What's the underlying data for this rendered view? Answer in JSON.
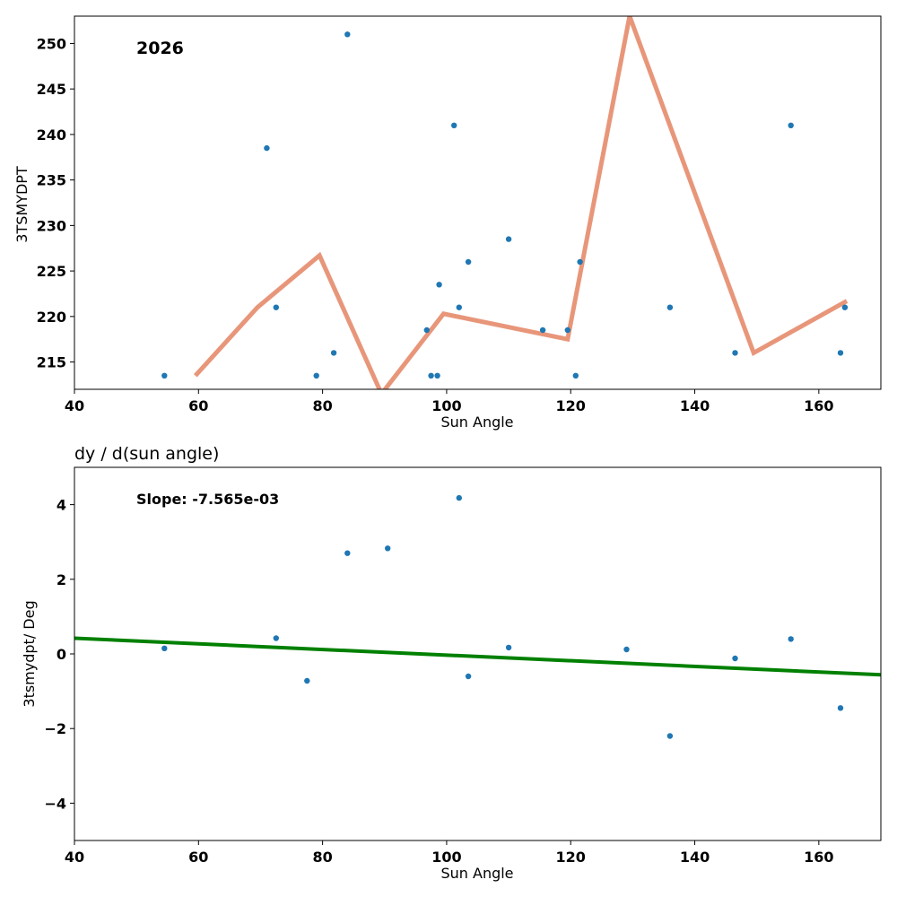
{
  "chart_data": [
    {
      "type": "scatter",
      "title": "",
      "annotation": "2026",
      "xlabel": "Sun Angle",
      "ylabel": "3TSMYDPT",
      "xlim": [
        40,
        170
      ],
      "ylim": [
        212,
        253
      ],
      "xticks": [
        "40",
        "60",
        "80",
        "100",
        "120",
        "140",
        "160"
      ],
      "yticks": [
        "215",
        "220",
        "225",
        "230",
        "235",
        "240",
        "245",
        "250"
      ],
      "colors": {
        "points": "#1f77b4",
        "line": "#e8967a"
      },
      "series": [
        {
          "name": "observations",
          "kind": "scatter",
          "x": [
            54.5,
            71.0,
            72.5,
            79.0,
            81.8,
            84.0,
            96.8,
            97.5,
            98.5,
            98.8,
            101.2,
            102.0,
            103.5,
            110.0,
            115.5,
            119.5,
            120.8,
            121.5,
            136.0,
            146.5,
            155.5,
            163.5,
            164.2
          ],
          "y": [
            213.5,
            238.5,
            221.0,
            213.5,
            216.0,
            251.0,
            218.5,
            213.5,
            213.5,
            223.5,
            241.0,
            221.0,
            226.0,
            228.5,
            218.5,
            218.5,
            213.5,
            226.0,
            221.0,
            216.0,
            241.0,
            216.0,
            221.0
          ]
        },
        {
          "name": "binned mean",
          "kind": "line",
          "x": [
            59.5,
            69.5,
            79.5,
            89.5,
            99.5,
            119.5,
            129.5,
            149.5,
            164.5
          ],
          "y": [
            213.5,
            221.0,
            226.7,
            211.5,
            220.3,
            217.5,
            253.0,
            216.0,
            221.7
          ]
        }
      ]
    },
    {
      "type": "scatter",
      "title": "dy / d(sun angle)",
      "annotation": "Slope: -7.565e-03",
      "xlabel": "Sun Angle",
      "ylabel": "3tsmydpt/ Deg",
      "xlim": [
        40,
        170
      ],
      "ylim": [
        -5,
        5
      ],
      "xticks": [
        "40",
        "60",
        "80",
        "100",
        "120",
        "140",
        "160"
      ],
      "yticks": [
        "−4",
        "−2",
        "0",
        "2",
        "4"
      ],
      "colors": {
        "points": "#1f77b4",
        "line": "#008000"
      },
      "series": [
        {
          "name": "derivative",
          "kind": "scatter",
          "x": [
            54.5,
            72.5,
            77.5,
            84.0,
            90.5,
            102.0,
            103.5,
            110.0,
            129.0,
            136.0,
            146.5,
            155.5,
            163.5
          ],
          "y": [
            0.15,
            0.42,
            -0.72,
            2.7,
            2.83,
            4.18,
            -0.6,
            0.17,
            0.12,
            -2.2,
            -0.12,
            0.4,
            -1.45
          ]
        },
        {
          "name": "linear fit",
          "kind": "line",
          "x": [
            40,
            170
          ],
          "y": [
            0.42,
            -0.56
          ]
        }
      ]
    }
  ]
}
